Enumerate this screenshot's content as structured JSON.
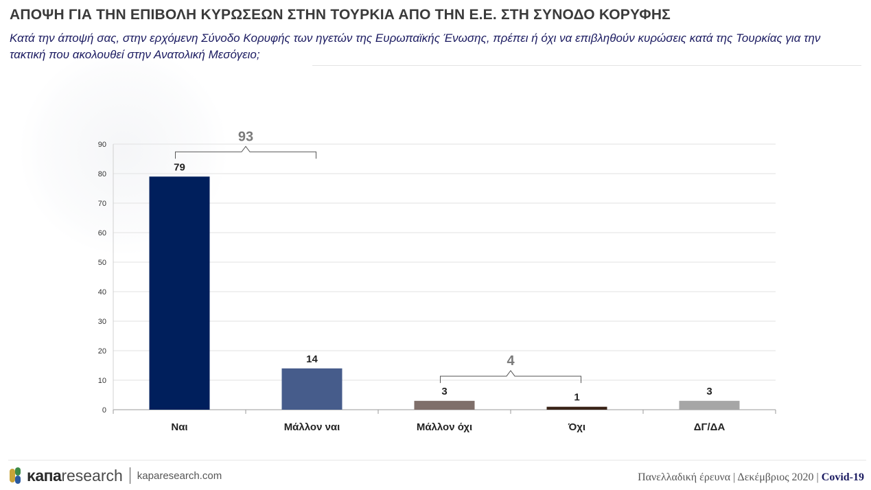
{
  "header": {
    "title": "ΑΠΟΨΗ ΓΙΑ ΤΗΝ ΕΠΙΒΟΛΗ ΚΥΡΩΣΕΩΝ ΣΤΗΝ ΤΟΥΡΚΙΑ ΑΠΟ ΤΗΝ Ε.Ε. ΣΤΗ ΣΥΝΟΔΟ ΚΟΡΥΦΗΣ",
    "subtitle": "Κατά την άποψή σας, στην ερχόμενη Σύνοδο Κορυφής των ηγετών της Ευρωπαϊκής Ένωσης, πρέπει ή όχι να επιβληθούν κυρώσεις κατά της Τουρκίας για την τακτική που ακολουθεί στην Ανατολική Μεσόγειο;"
  },
  "chart_data": {
    "type": "bar",
    "categories": [
      "Ναι",
      "Μάλλον ναι",
      "Μάλλον όχι",
      "Όχι",
      "ΔΓ/ΔΑ"
    ],
    "values": [
      79,
      14,
      3,
      1,
      3
    ],
    "colors": [
      "#001f5c",
      "#465c8b",
      "#7f6f6a",
      "#3a2418",
      "#a6a6a6"
    ],
    "ylim": [
      0,
      90
    ],
    "yticks": [
      0,
      10,
      20,
      30,
      40,
      50,
      60,
      70,
      80,
      90
    ],
    "grid": true,
    "group_totals": [
      {
        "label": "93",
        "from": 0,
        "to": 1
      },
      {
        "label": "4",
        "from": 2,
        "to": 3
      }
    ]
  },
  "footer": {
    "brand_bold": "κапа",
    "brand_light": "research",
    "url": "kaparesearch.com",
    "survey": "Πανελλαδική έρευνα | Δεκέμβριος 2020 | ",
    "tag": "Covid-19"
  }
}
